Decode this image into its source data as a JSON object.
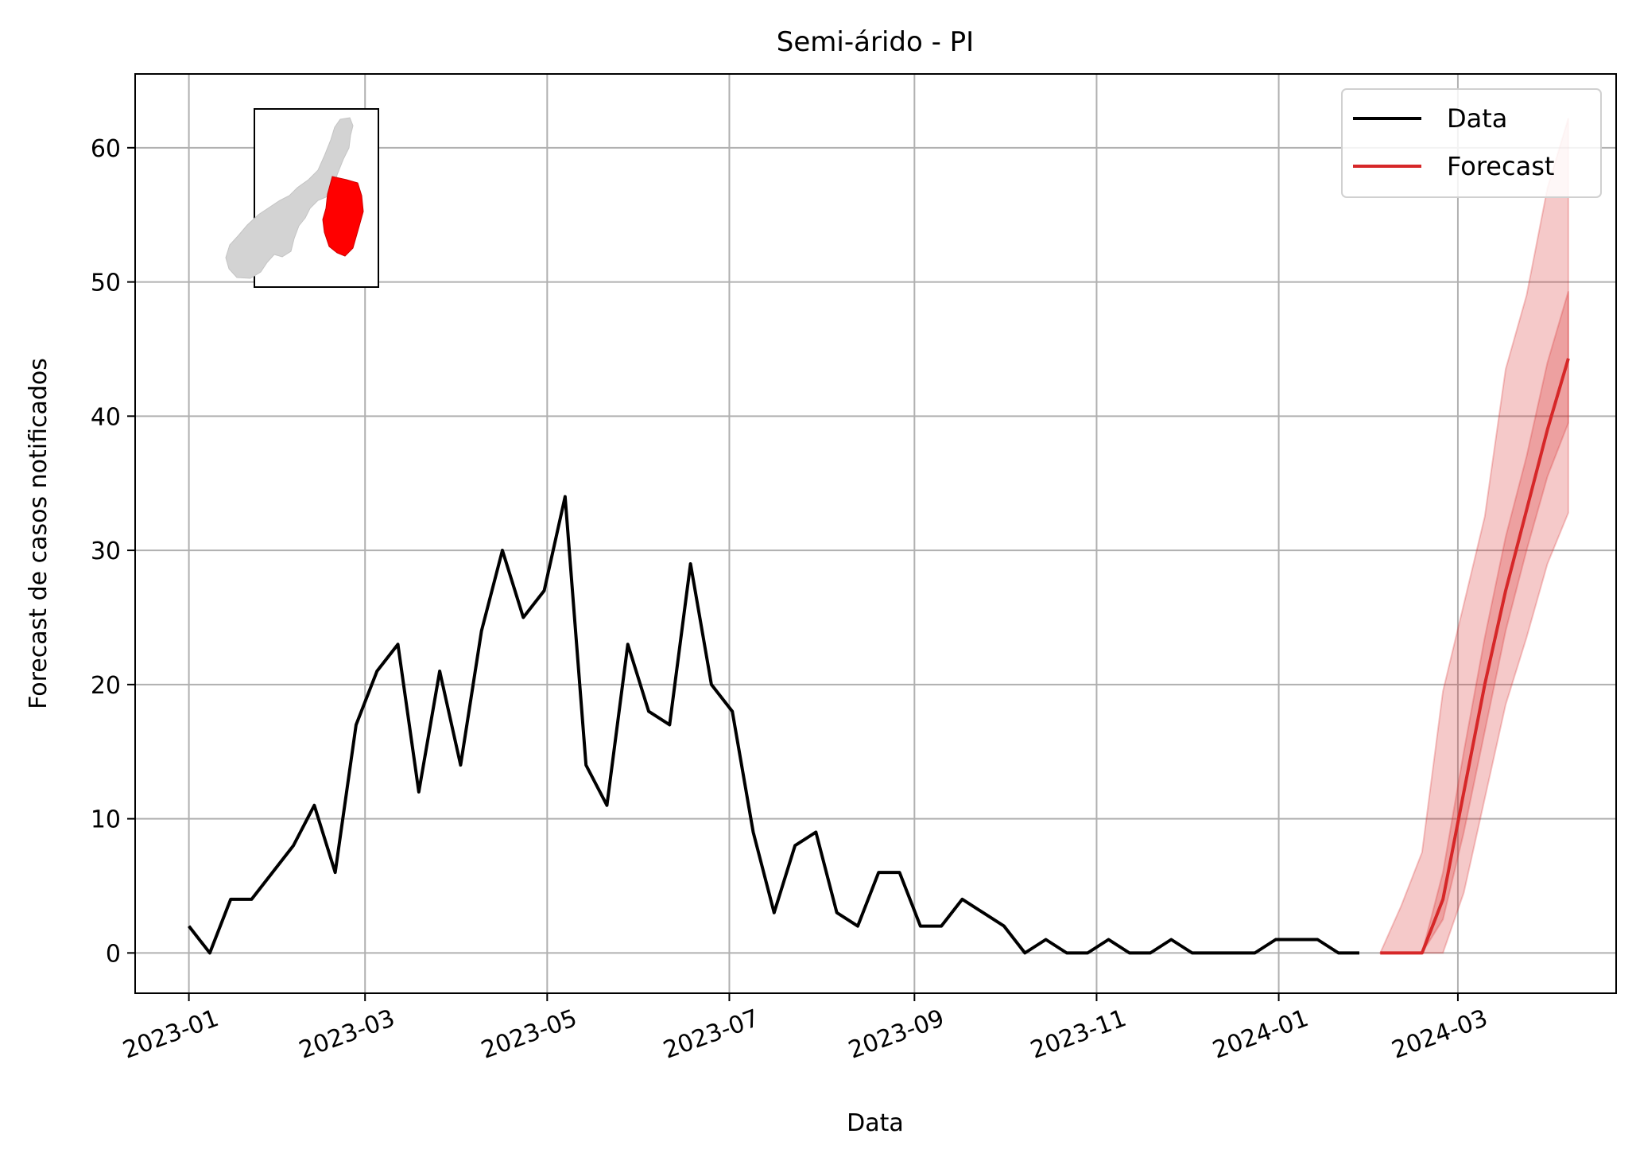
{
  "chart_data": {
    "type": "line",
    "title": "Semi-árido - PI",
    "xlabel": "Data",
    "ylabel": "Forecast de casos notificados",
    "xlim": [
      "2022-12-14",
      "2024-04-23"
    ],
    "ylim": [
      -3,
      65.5
    ],
    "x_ticks": [
      "2023-01-01",
      "2023-03-01",
      "2023-05-01",
      "2023-07-01",
      "2023-09-01",
      "2023-11-01",
      "2024-01-01",
      "2024-03-01"
    ],
    "x_tick_labels": [
      "2023-01",
      "2023-03",
      "2023-05",
      "2023-07",
      "2023-09",
      "2023-11",
      "2024-01",
      "2024-03"
    ],
    "y_ticks": [
      0,
      10,
      20,
      30,
      40,
      50,
      60
    ],
    "y_tick_labels": [
      "0",
      "10",
      "20",
      "30",
      "40",
      "50",
      "60"
    ],
    "grid": true,
    "legend_position": "top-right",
    "series": [
      {
        "name": "Data",
        "color": "#000000",
        "x": [
          "2023-01-01",
          "2023-01-08",
          "2023-01-15",
          "2023-01-22",
          "2023-01-29",
          "2023-02-05",
          "2023-02-12",
          "2023-02-19",
          "2023-02-26",
          "2023-03-05",
          "2023-03-12",
          "2023-03-19",
          "2023-03-26",
          "2023-04-02",
          "2023-04-09",
          "2023-04-16",
          "2023-04-23",
          "2023-04-30",
          "2023-05-07",
          "2023-05-14",
          "2023-05-21",
          "2023-05-28",
          "2023-06-04",
          "2023-06-11",
          "2023-06-18",
          "2023-06-25",
          "2023-07-02",
          "2023-07-09",
          "2023-07-16",
          "2023-07-23",
          "2023-07-30",
          "2023-08-06",
          "2023-08-13",
          "2023-08-20",
          "2023-08-27",
          "2023-09-03",
          "2023-09-10",
          "2023-09-17",
          "2023-09-24",
          "2023-10-01",
          "2023-10-08",
          "2023-10-15",
          "2023-10-22",
          "2023-10-29",
          "2023-11-05",
          "2023-11-12",
          "2023-11-19",
          "2023-11-26",
          "2023-12-03",
          "2023-12-10",
          "2023-12-17",
          "2023-12-24",
          "2023-12-31",
          "2024-01-07",
          "2024-01-14",
          "2024-01-21",
          "2024-01-28"
        ],
        "values": [
          2,
          0,
          4,
          4,
          6,
          8,
          11,
          6,
          17,
          21,
          23,
          12,
          21,
          14,
          24,
          30,
          25,
          27,
          34,
          14,
          11,
          23,
          18,
          17,
          29,
          20,
          18,
          9,
          3,
          8,
          9,
          3,
          2,
          6,
          6,
          2,
          2,
          4,
          3,
          2,
          0,
          1,
          0,
          0,
          1,
          0,
          0,
          1,
          0,
          0,
          0,
          0,
          1,
          1,
          1,
          0,
          0
        ]
      },
      {
        "name": "Forecast",
        "color": "#d62728",
        "x": [
          "2024-02-04",
          "2024-02-11",
          "2024-02-18",
          "2024-02-25",
          "2024-03-03",
          "2024-03-10",
          "2024-03-17",
          "2024-03-24",
          "2024-03-31",
          "2024-04-07"
        ],
        "values": [
          0,
          0,
          0,
          4,
          12,
          20,
          27,
          33,
          39,
          44.3
        ],
        "band_inner_lower": [
          0,
          0,
          0,
          2.5,
          9,
          16.5,
          24,
          30,
          35.5,
          39.5
        ],
        "band_inner_upper": [
          0,
          0,
          0,
          6,
          15,
          23.5,
          31,
          37,
          44,
          49.3
        ],
        "band_outer_lower": [
          0,
          0,
          0,
          0,
          4.5,
          11.5,
          18.5,
          23.5,
          29,
          32.8
        ],
        "band_outer_upper": [
          0,
          3.5,
          7.5,
          19.5,
          26,
          32.5,
          43.5,
          49,
          57,
          62.2
        ]
      }
    ]
  }
}
